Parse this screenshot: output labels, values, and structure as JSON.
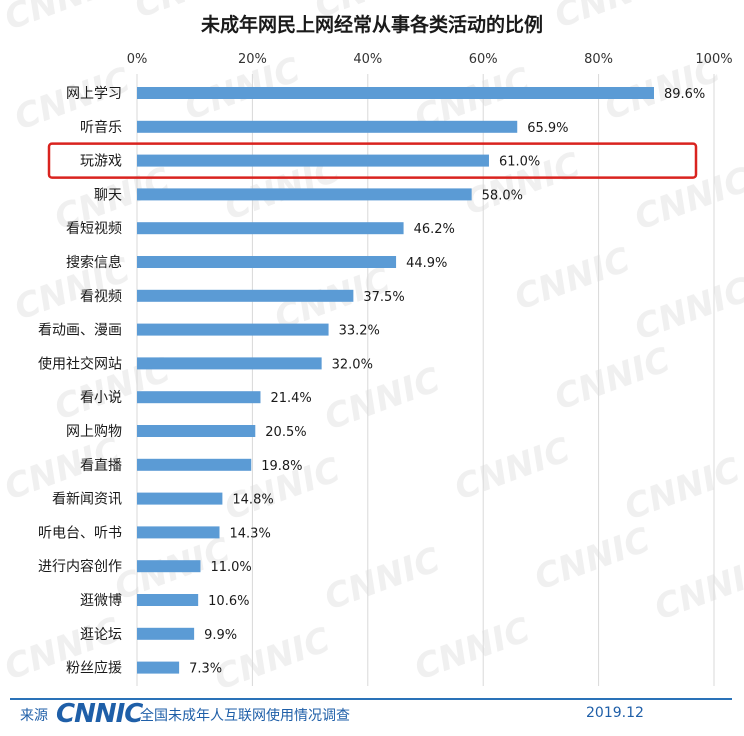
{
  "chart_data": {
    "type": "bar",
    "orientation": "horizontal",
    "title": "未成年网民上网经常从事各类活动的比例",
    "xlabel": "",
    "ylabel": "",
    "xlim": [
      0,
      100
    ],
    "x_ticks": [
      "0%",
      "20%",
      "40%",
      "60%",
      "80%",
      "100%"
    ],
    "categories": [
      "网上学习",
      "听音乐",
      "玩游戏",
      "聊天",
      "看短视频",
      "搜索信息",
      "看视频",
      "看动画、漫画",
      "使用社交网站",
      "看小说",
      "网上购物",
      "看直播",
      "看新闻资讯",
      "听电台、听书",
      "进行内容创作",
      "逛微博",
      "逛论坛",
      "粉丝应援"
    ],
    "values": [
      89.6,
      65.9,
      61.0,
      58.0,
      46.2,
      44.9,
      37.5,
      33.2,
      32.0,
      21.4,
      20.5,
      19.8,
      14.8,
      14.3,
      11.0,
      10.6,
      9.9,
      7.3
    ],
    "value_labels": [
      "89.6%",
      "65.9%",
      "61.0%",
      "58.0%",
      "46.2%",
      "44.9%",
      "37.5%",
      "33.2%",
      "32.0%",
      "21.4%",
      "20.5%",
      "19.8%",
      "14.8%",
      "14.3%",
      "11.0%",
      "10.6%",
      "9.9%",
      "7.3%"
    ],
    "highlighted_category": "玩游戏",
    "bar_color": "#5b9bd5",
    "highlight_color": "#d9231f",
    "grid": true,
    "watermark": "CNNIC"
  },
  "footer": {
    "source_label": "来源",
    "logo_text": "CNNIC",
    "source_text": "全国未成年人互联网使用情况调查",
    "date": "2019.12"
  }
}
